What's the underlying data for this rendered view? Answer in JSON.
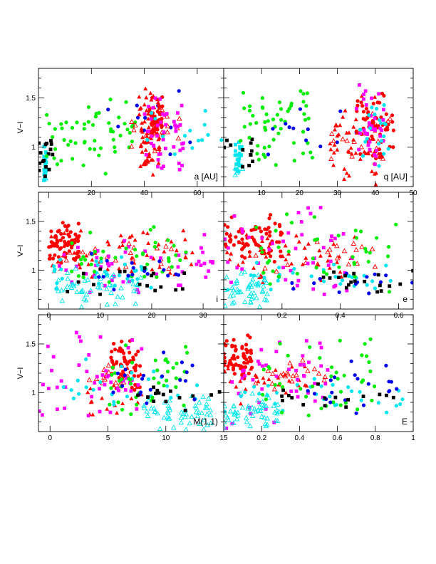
{
  "chart_data": {
    "type": "scatter",
    "y_label": "V−I",
    "y_ticks": [
      "1",
      "1.5"
    ],
    "ylim": [
      0.6,
      1.8
    ],
    "grid": false,
    "color_classes": {
      "red": "#ff0000",
      "green": "#00ee00",
      "blue": "#0000ee",
      "cyan": "#00e5ee",
      "magenta": "#ff00ff",
      "black": "#000000"
    },
    "marker_types": [
      "filled-circle",
      "filled-triangle",
      "open-triangle",
      "filled-square"
    ],
    "panels": [
      {
        "id": "a",
        "label": "a [AU]",
        "xlim": [
          0,
          70
        ],
        "x_ticks": [
          "20",
          "40",
          "60"
        ],
        "y_tick_labels": true,
        "clusters": [
          {
            "color": "cyan",
            "marker": "filled-square",
            "x": [
              2,
              3
            ],
            "y": [
              0.65,
              1.05
            ],
            "n": 28
          },
          {
            "color": "cyan",
            "marker": "open-triangle",
            "x": [
              2,
              3
            ],
            "y": [
              0.6,
              0.8
            ],
            "n": 4
          },
          {
            "color": "black",
            "marker": "filled-square",
            "x": [
              0,
              6
            ],
            "y": [
              0.65,
              1.15
            ],
            "n": 16
          },
          {
            "color": "green",
            "marker": "filled-circle",
            "x": [
              3,
              38
            ],
            "y": [
              0.7,
              1.6
            ],
            "n": 55
          },
          {
            "color": "blue",
            "marker": "filled-circle",
            "x": [
              25,
              62
            ],
            "y": [
              0.8,
              1.6
            ],
            "n": 12
          },
          {
            "color": "red",
            "marker": "filled-triangle",
            "x": [
              38,
              46
            ],
            "y": [
              0.6,
              1.7
            ],
            "n": 70
          },
          {
            "color": "red",
            "marker": "filled-circle",
            "x": [
              42,
              47
            ],
            "y": [
              1.0,
              1.55
            ],
            "n": 50
          },
          {
            "color": "red",
            "marker": "open-triangle",
            "x": [
              35,
              55
            ],
            "y": [
              0.85,
              1.45
            ],
            "n": 20
          },
          {
            "color": "magenta",
            "marker": "filled-square",
            "x": [
              40,
              55
            ],
            "y": [
              0.6,
              1.7
            ],
            "n": 45
          },
          {
            "color": "cyan",
            "marker": "filled-circle",
            "x": [
              40,
              70
            ],
            "y": [
              0.8,
              1.5
            ],
            "n": 14
          }
        ]
      },
      {
        "id": "q",
        "label": "q [AU]",
        "xlim": [
          0,
          50
        ],
        "x_ticks": [
          "10",
          "20",
          "30",
          "40",
          "50"
        ],
        "y_tick_labels": false,
        "clusters": [
          {
            "color": "cyan",
            "marker": "filled-square",
            "x": [
              3,
              5
            ],
            "y": [
              0.7,
              1.1
            ],
            "n": 25
          },
          {
            "color": "cyan",
            "marker": "open-triangle",
            "x": [
              3,
              5
            ],
            "y": [
              0.65,
              0.85
            ],
            "n": 6
          },
          {
            "color": "black",
            "marker": "filled-square",
            "x": [
              0,
              8
            ],
            "y": [
              0.7,
              1.15
            ],
            "n": 12
          },
          {
            "color": "green",
            "marker": "filled-circle",
            "x": [
              4,
              24
            ],
            "y": [
              0.75,
              1.6
            ],
            "n": 55
          },
          {
            "color": "blue",
            "marker": "filled-circle",
            "x": [
              10,
              40
            ],
            "y": [
              0.8,
              1.5
            ],
            "n": 12
          },
          {
            "color": "red",
            "marker": "filled-triangle",
            "x": [
              28,
              42
            ],
            "y": [
              0.6,
              1.55
            ],
            "n": 55
          },
          {
            "color": "red",
            "marker": "filled-circle",
            "x": [
              35,
              45
            ],
            "y": [
              0.8,
              1.6
            ],
            "n": 55
          },
          {
            "color": "red",
            "marker": "open-triangle",
            "x": [
              28,
              44
            ],
            "y": [
              0.8,
              1.45
            ],
            "n": 20
          },
          {
            "color": "magenta",
            "marker": "filled-square",
            "x": [
              35,
              44
            ],
            "y": [
              0.6,
              1.7
            ],
            "n": 35
          },
          {
            "color": "cyan",
            "marker": "filled-circle",
            "x": [
              36,
              44
            ],
            "y": [
              0.7,
              1.45
            ],
            "n": 20
          }
        ]
      },
      {
        "id": "i",
        "label": "i",
        "xlim": [
          -2,
          34
        ],
        "x_ticks": [
          "0",
          "10",
          "20",
          "30"
        ],
        "y_tick_labels": true,
        "clusters": [
          {
            "color": "red",
            "marker": "filled-circle",
            "x": [
              0,
              6
            ],
            "y": [
              1.05,
              1.55
            ],
            "n": 70
          },
          {
            "color": "red",
            "marker": "filled-triangle",
            "x": [
              0,
              28
            ],
            "y": [
              0.8,
              1.5
            ],
            "n": 55
          },
          {
            "color": "red",
            "marker": "open-triangle",
            "x": [
              3,
              25
            ],
            "y": [
              1.0,
              1.35
            ],
            "n": 20
          },
          {
            "color": "magenta",
            "marker": "filled-square",
            "x": [
              2,
              32
            ],
            "y": [
              0.6,
              1.5
            ],
            "n": 50
          },
          {
            "color": "cyan",
            "marker": "open-triangle",
            "x": [
              0,
              18
            ],
            "y": [
              0.6,
              1.05
            ],
            "n": 55
          },
          {
            "color": "cyan",
            "marker": "filled-circle",
            "x": [
              0,
              22
            ],
            "y": [
              0.75,
              1.2
            ],
            "n": 30
          },
          {
            "color": "green",
            "marker": "filled-circle",
            "x": [
              4,
              27
            ],
            "y": [
              0.65,
              1.55
            ],
            "n": 40
          },
          {
            "color": "blue",
            "marker": "filled-circle",
            "x": [
              8,
              26
            ],
            "y": [
              0.7,
              1.2
            ],
            "n": 16
          },
          {
            "color": "black",
            "marker": "filled-square",
            "x": [
              3,
              28
            ],
            "y": [
              0.7,
              1.05
            ],
            "n": 18
          }
        ]
      },
      {
        "id": "e",
        "label": "e",
        "xlim": [
          0,
          0.65
        ],
        "x_ticks": [
          "0.2",
          "0.4",
          "0.6"
        ],
        "y_tick_labels": false,
        "clusters": [
          {
            "color": "red",
            "marker": "filled-circle",
            "x": [
              0.0,
              0.2
            ],
            "y": [
              1.05,
              1.6
            ],
            "n": 70
          },
          {
            "color": "red",
            "marker": "filled-triangle",
            "x": [
              0.0,
              0.45
            ],
            "y": [
              0.8,
              1.45
            ],
            "n": 50
          },
          {
            "color": "red",
            "marker": "open-triangle",
            "x": [
              0.1,
              0.55
            ],
            "y": [
              0.95,
              1.35
            ],
            "n": 20
          },
          {
            "color": "magenta",
            "marker": "filled-square",
            "x": [
              0.0,
              0.45
            ],
            "y": [
              0.6,
              1.7
            ],
            "n": 45
          },
          {
            "color": "cyan",
            "marker": "open-triangle",
            "x": [
              0.0,
              0.15
            ],
            "y": [
              0.6,
              1.0
            ],
            "n": 50
          },
          {
            "color": "cyan",
            "marker": "filled-circle",
            "x": [
              0.0,
              0.6
            ],
            "y": [
              0.7,
              1.1
            ],
            "n": 30
          },
          {
            "color": "green",
            "marker": "filled-circle",
            "x": [
              0.1,
              0.6
            ],
            "y": [
              0.7,
              1.6
            ],
            "n": 40
          },
          {
            "color": "blue",
            "marker": "filled-circle",
            "x": [
              0.2,
              0.65
            ],
            "y": [
              0.75,
              1.05
            ],
            "n": 14
          },
          {
            "color": "black",
            "marker": "filled-square",
            "x": [
              0.3,
              0.65
            ],
            "y": [
              0.75,
              1.05
            ],
            "n": 18
          }
        ]
      },
      {
        "id": "M11",
        "label": "M(1,1)",
        "xlim": [
          -1,
          15
        ],
        "x_ticks": [
          "0",
          "5",
          "10",
          "15"
        ],
        "y_tick_labels": true,
        "clusters": [
          {
            "color": "red",
            "marker": "filled-circle",
            "x": [
              5,
              8
            ],
            "y": [
              1.0,
              1.6
            ],
            "n": 60
          },
          {
            "color": "red",
            "marker": "filled-triangle",
            "x": [
              3,
              8
            ],
            "y": [
              0.7,
              1.3
            ],
            "n": 20
          },
          {
            "color": "red",
            "marker": "open-triangle",
            "x": [
              3,
              7
            ],
            "y": [
              1.0,
              1.3
            ],
            "n": 15
          },
          {
            "color": "magenta",
            "marker": "filled-square",
            "x": [
              -1,
              8
            ],
            "y": [
              0.6,
              1.7
            ],
            "n": 45
          },
          {
            "color": "cyan",
            "marker": "open-triangle",
            "x": [
              8,
              14
            ],
            "y": [
              0.6,
              1.0
            ],
            "n": 55
          },
          {
            "color": "cyan",
            "marker": "filled-circle",
            "x": [
              1,
              13
            ],
            "y": [
              0.8,
              1.35
            ],
            "n": 25
          },
          {
            "color": "green",
            "marker": "filled-circle",
            "x": [
              5,
              12
            ],
            "y": [
              0.7,
              1.55
            ],
            "n": 40
          },
          {
            "color": "blue",
            "marker": "filled-circle",
            "x": [
              5,
              13
            ],
            "y": [
              0.8,
              1.45
            ],
            "n": 20
          },
          {
            "color": "black",
            "marker": "filled-square",
            "x": [
              6,
              15
            ],
            "y": [
              0.8,
              1.15
            ],
            "n": 15
          }
        ]
      },
      {
        "id": "E",
        "label": "E",
        "xlim": [
          0,
          1
        ],
        "x_ticks": [
          "0.2",
          "0.4",
          "0.6",
          "0.8",
          "1"
        ],
        "y_tick_labels": false,
        "clusters": [
          {
            "color": "red",
            "marker": "filled-circle",
            "x": [
              0.0,
              0.15
            ],
            "y": [
              1.1,
              1.6
            ],
            "n": 60
          },
          {
            "color": "red",
            "marker": "filled-triangle",
            "x": [
              0.0,
              0.45
            ],
            "y": [
              0.85,
              1.45
            ],
            "n": 30
          },
          {
            "color": "red",
            "marker": "open-triangle",
            "x": [
              0.15,
              0.55
            ],
            "y": [
              1.0,
              1.4
            ],
            "n": 20
          },
          {
            "color": "magenta",
            "marker": "filled-square",
            "x": [
              0.0,
              0.55
            ],
            "y": [
              0.6,
              1.7
            ],
            "n": 45
          },
          {
            "color": "cyan",
            "marker": "open-triangle",
            "x": [
              0.0,
              0.3
            ],
            "y": [
              0.6,
              1.0
            ],
            "n": 55
          },
          {
            "color": "cyan",
            "marker": "filled-circle",
            "x": [
              0.0,
              0.95
            ],
            "y": [
              0.75,
              1.2
            ],
            "n": 30
          },
          {
            "color": "green",
            "marker": "filled-circle",
            "x": [
              0.2,
              0.8
            ],
            "y": [
              0.65,
              1.6
            ],
            "n": 40
          },
          {
            "color": "blue",
            "marker": "filled-circle",
            "x": [
              0.4,
              0.95
            ],
            "y": [
              0.75,
              1.4
            ],
            "n": 20
          },
          {
            "color": "black",
            "marker": "filled-square",
            "x": [
              0.3,
              0.95
            ],
            "y": [
              0.8,
              1.1
            ],
            "n": 16
          }
        ]
      }
    ]
  }
}
